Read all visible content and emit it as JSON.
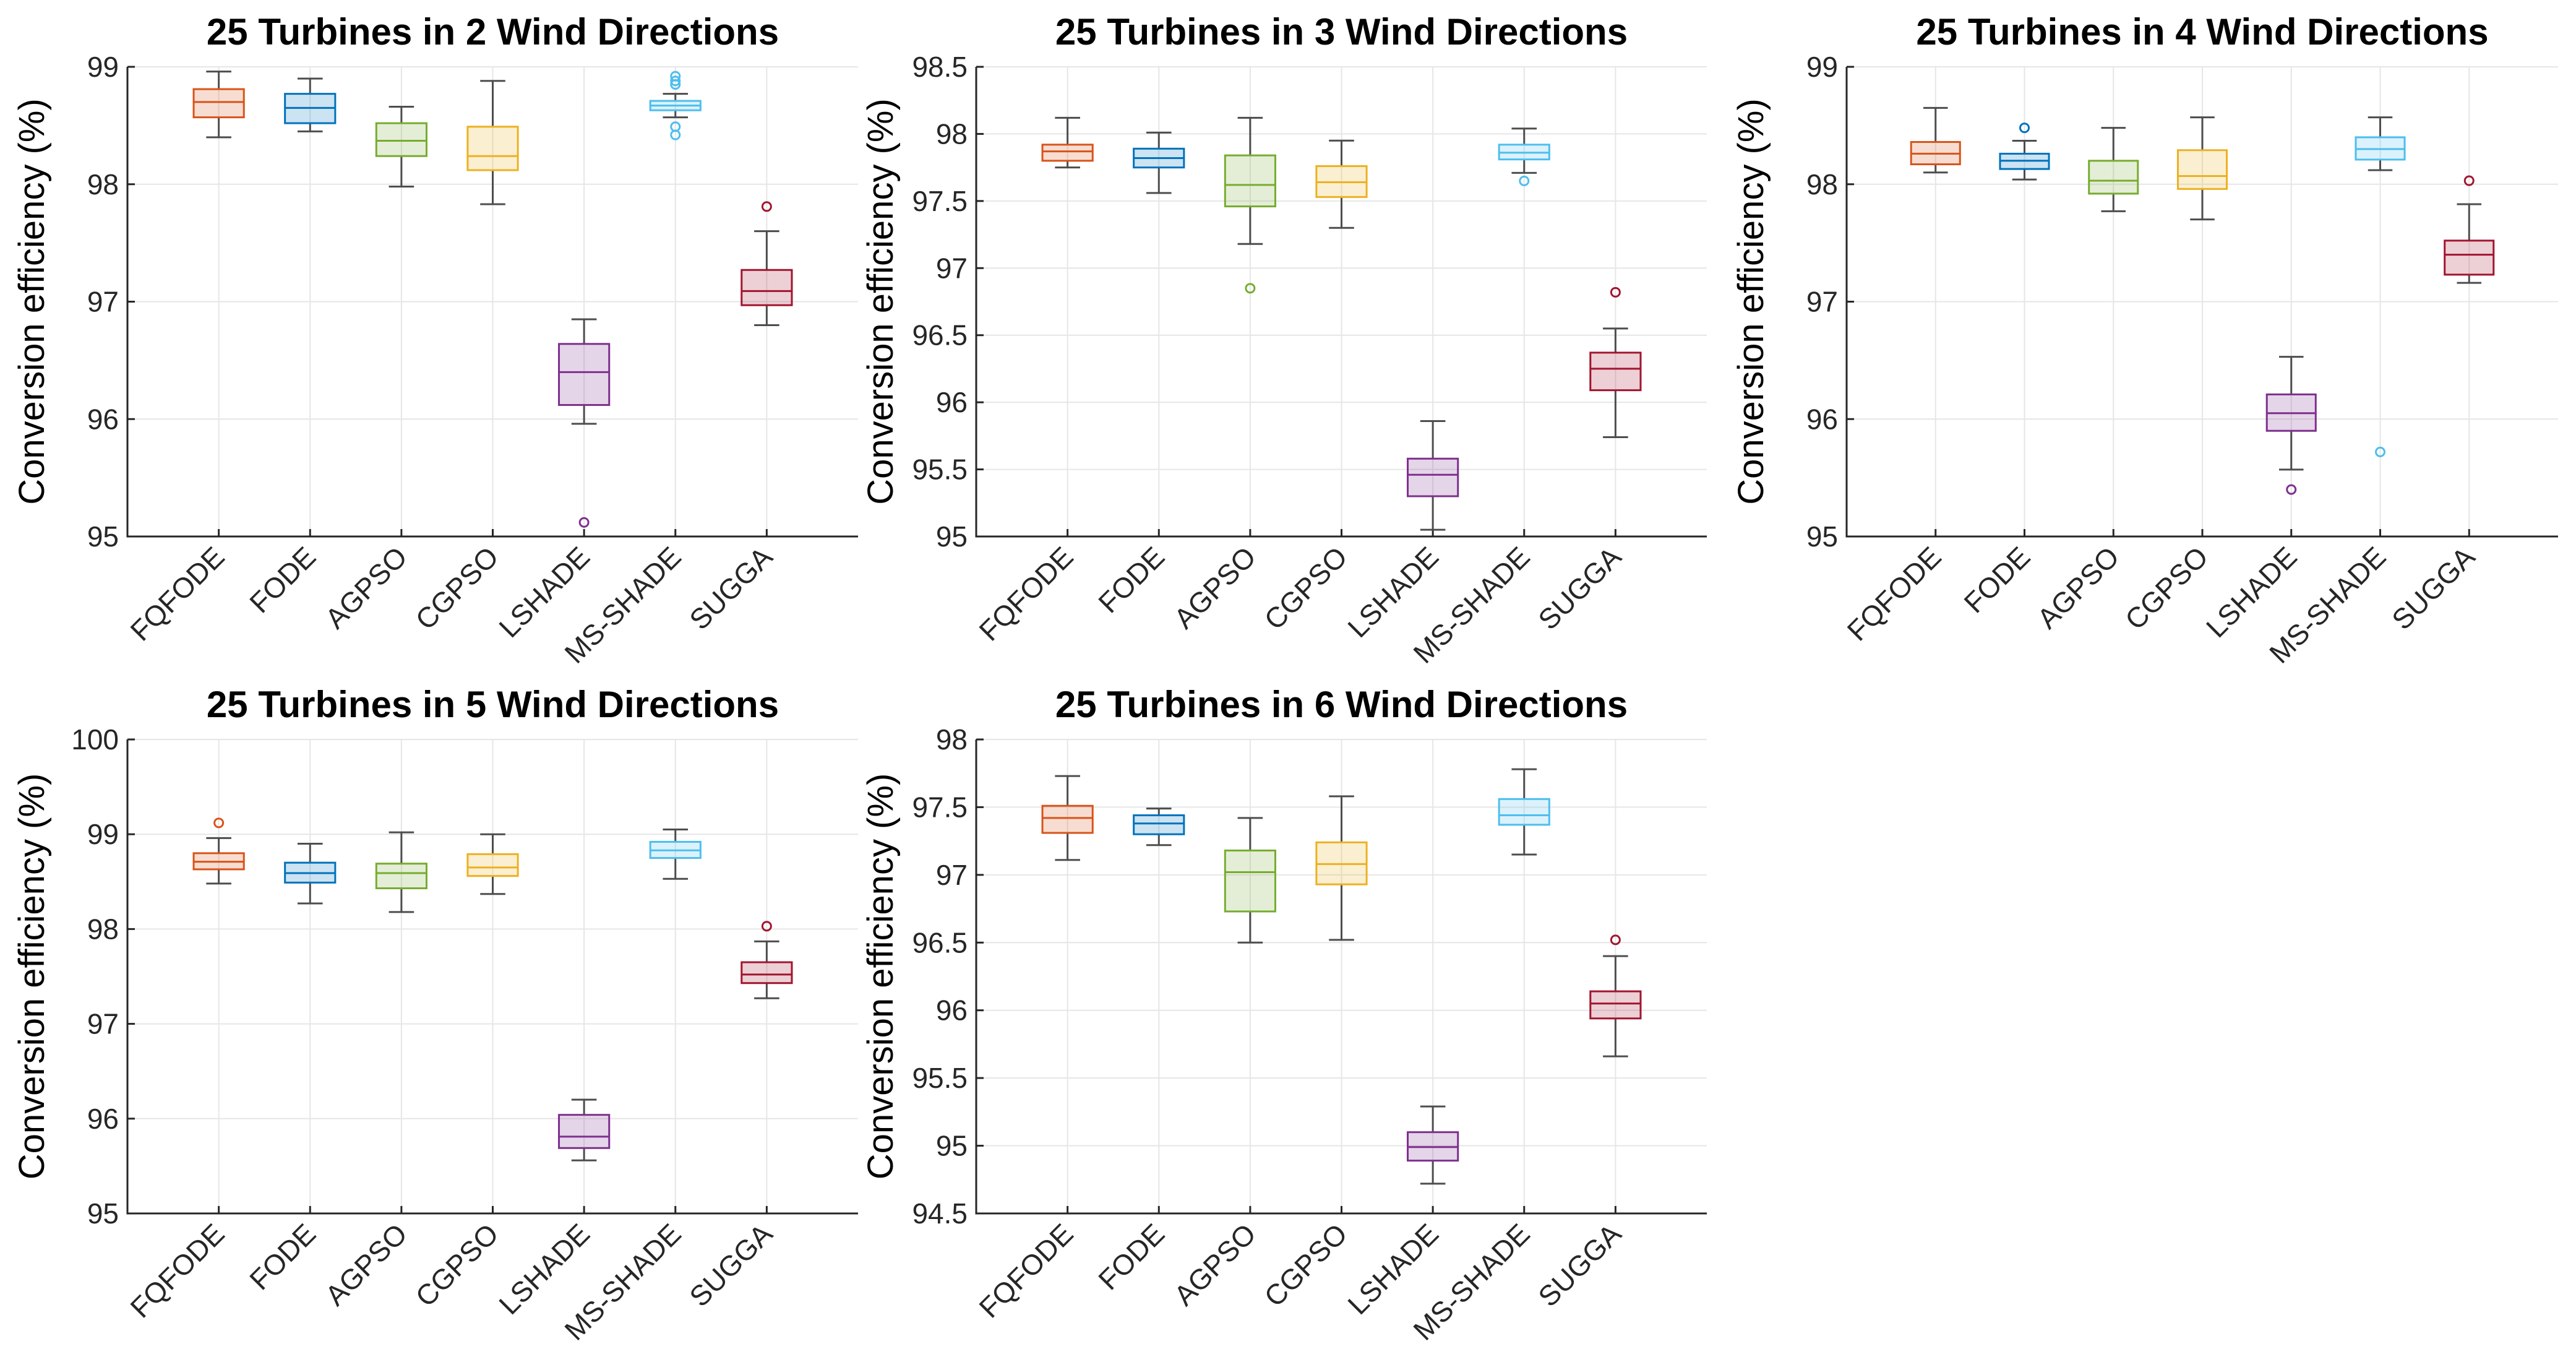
{
  "chart_data": [
    {
      "type": "box",
      "title": "25 Turbines in 2 Wind Directions",
      "ylabel": "Conversion efficiency (%)",
      "xlabel": "",
      "ylim": [
        95,
        99
      ],
      "yticks": [
        "95",
        "96",
        "97",
        "98",
        "99"
      ],
      "grid": true,
      "categories": [
        "FQFODE",
        "FODE",
        "AGPSO",
        "CGPSO",
        "LSHADE",
        "MS-SHADE",
        "SUGGA"
      ],
      "boxes": [
        {
          "min": 98.4,
          "q1": 98.57,
          "median": 98.7,
          "q3": 98.81,
          "max": 98.96,
          "outliers": []
        },
        {
          "min": 98.45,
          "q1": 98.52,
          "median": 98.65,
          "q3": 98.77,
          "max": 98.9,
          "outliers": []
        },
        {
          "min": 97.98,
          "q1": 98.24,
          "median": 98.37,
          "q3": 98.52,
          "max": 98.66,
          "outliers": []
        },
        {
          "min": 97.83,
          "q1": 98.12,
          "median": 98.24,
          "q3": 98.49,
          "max": 98.88,
          "outliers": []
        },
        {
          "min": 95.96,
          "q1": 96.12,
          "median": 96.4,
          "q3": 96.64,
          "max": 96.85,
          "outliers": [
            95.12
          ]
        },
        {
          "min": 98.57,
          "q1": 98.63,
          "median": 98.67,
          "q3": 98.71,
          "max": 98.77,
          "outliers": [
            98.42,
            98.49,
            98.85,
            98.88,
            98.92
          ]
        },
        {
          "min": 96.8,
          "q1": 96.97,
          "median": 97.09,
          "q3": 97.27,
          "max": 97.6,
          "outliers": [
            97.81
          ]
        }
      ]
    },
    {
      "type": "box",
      "title": "25 Turbines in 3 Wind Directions",
      "ylabel": "Conversion efficiency (%)",
      "xlabel": "",
      "ylim": [
        95,
        98.5
      ],
      "yticks": [
        "95",
        "95.5",
        "96",
        "96.5",
        "97",
        "97.5",
        "98",
        "98.5"
      ],
      "grid": true,
      "categories": [
        "FQFODE",
        "FODE",
        "AGPSO",
        "CGPSO",
        "LSHADE",
        "MS-SHADE",
        "SUGGA"
      ],
      "boxes": [
        {
          "min": 97.75,
          "q1": 97.8,
          "median": 97.87,
          "q3": 97.92,
          "max": 98.12,
          "outliers": []
        },
        {
          "min": 97.56,
          "q1": 97.75,
          "median": 97.82,
          "q3": 97.89,
          "max": 98.01,
          "outliers": []
        },
        {
          "min": 97.18,
          "q1": 97.46,
          "median": 97.62,
          "q3": 97.84,
          "max": 98.12,
          "outliers": [
            96.85
          ]
        },
        {
          "min": 97.3,
          "q1": 97.53,
          "median": 97.64,
          "q3": 97.76,
          "max": 97.95,
          "outliers": []
        },
        {
          "min": 95.05,
          "q1": 95.3,
          "median": 95.46,
          "q3": 95.58,
          "max": 95.86,
          "outliers": []
        },
        {
          "min": 97.71,
          "q1": 97.81,
          "median": 97.86,
          "q3": 97.92,
          "max": 98.04,
          "outliers": [
            97.65
          ]
        },
        {
          "min": 95.74,
          "q1": 96.09,
          "median": 96.25,
          "q3": 96.37,
          "max": 96.55,
          "outliers": [
            96.82
          ]
        }
      ]
    },
    {
      "type": "box",
      "title": "25 Turbines in 4 Wind Directions",
      "ylabel": "Conversion efficiency (%)",
      "xlabel": "",
      "ylim": [
        95,
        99
      ],
      "yticks": [
        "95",
        "96",
        "97",
        "98",
        "99"
      ],
      "grid": true,
      "categories": [
        "FQFODE",
        "FODE",
        "AGPSO",
        "CGPSO",
        "LSHADE",
        "MS-SHADE",
        "SUGGA"
      ],
      "boxes": [
        {
          "min": 98.1,
          "q1": 98.17,
          "median": 98.26,
          "q3": 98.36,
          "max": 98.65,
          "outliers": []
        },
        {
          "min": 98.04,
          "q1": 98.13,
          "median": 98.2,
          "q3": 98.26,
          "max": 98.37,
          "outliers": [
            98.48
          ]
        },
        {
          "min": 97.77,
          "q1": 97.92,
          "median": 98.03,
          "q3": 98.2,
          "max": 98.48,
          "outliers": []
        },
        {
          "min": 97.7,
          "q1": 97.96,
          "median": 98.07,
          "q3": 98.29,
          "max": 98.57,
          "outliers": []
        },
        {
          "min": 95.57,
          "q1": 95.9,
          "median": 96.05,
          "q3": 96.21,
          "max": 96.53,
          "outliers": [
            95.4
          ]
        },
        {
          "min": 98.12,
          "q1": 98.21,
          "median": 98.3,
          "q3": 98.4,
          "max": 98.57,
          "outliers": [
            95.72
          ]
        },
        {
          "min": 97.16,
          "q1": 97.23,
          "median": 97.4,
          "q3": 97.52,
          "max": 97.83,
          "outliers": [
            98.03
          ]
        }
      ]
    },
    {
      "type": "box",
      "title": "25 Turbines in 5 Wind Directions",
      "ylabel": "Conversion efficiency (%)",
      "xlabel": "",
      "ylim": [
        95,
        100
      ],
      "yticks": [
        "95",
        "96",
        "97",
        "98",
        "99",
        "100"
      ],
      "grid": true,
      "categories": [
        "FQFODE",
        "FODE",
        "AGPSO",
        "CGPSO",
        "LSHADE",
        "MS-SHADE",
        "SUGGA"
      ],
      "boxes": [
        {
          "min": 98.48,
          "q1": 98.63,
          "median": 98.71,
          "q3": 98.8,
          "max": 98.96,
          "outliers": [
            99.12
          ]
        },
        {
          "min": 98.27,
          "q1": 98.49,
          "median": 98.59,
          "q3": 98.7,
          "max": 98.9,
          "outliers": []
        },
        {
          "min": 98.18,
          "q1": 98.43,
          "median": 98.59,
          "q3": 98.69,
          "max": 99.02,
          "outliers": []
        },
        {
          "min": 98.37,
          "q1": 98.56,
          "median": 98.65,
          "q3": 98.79,
          "max": 99.0,
          "outliers": []
        },
        {
          "min": 95.56,
          "q1": 95.69,
          "median": 95.81,
          "q3": 96.04,
          "max": 96.2,
          "outliers": []
        },
        {
          "min": 98.53,
          "q1": 98.75,
          "median": 98.83,
          "q3": 98.92,
          "max": 99.05,
          "outliers": []
        },
        {
          "min": 97.27,
          "q1": 97.43,
          "median": 97.52,
          "q3": 97.65,
          "max": 97.87,
          "outliers": [
            98.03
          ]
        }
      ]
    },
    {
      "type": "box",
      "title": "25 Turbines in 6 Wind Directions",
      "ylabel": "Conversion efficiency (%)",
      "xlabel": "",
      "ylim": [
        94.5,
        98
      ],
      "yticks": [
        "94.5",
        "95",
        "95.5",
        "96",
        "96.5",
        "97",
        "97.5",
        "98"
      ],
      "grid": true,
      "categories": [
        "FQFODE",
        "FODE",
        "AGPSO",
        "CGPSO",
        "LSHADE",
        "MS-SHADE",
        "SUGGA"
      ],
      "boxes": [
        {
          "min": 97.11,
          "q1": 97.31,
          "median": 97.42,
          "q3": 97.51,
          "max": 97.73,
          "outliers": []
        },
        {
          "min": 97.22,
          "q1": 97.3,
          "median": 97.38,
          "q3": 97.44,
          "max": 97.49,
          "outliers": []
        },
        {
          "min": 96.5,
          "q1": 96.73,
          "median": 97.02,
          "q3": 97.18,
          "max": 97.42,
          "outliers": []
        },
        {
          "min": 96.52,
          "q1": 96.93,
          "median": 97.08,
          "q3": 97.24,
          "max": 97.58,
          "outliers": []
        },
        {
          "min": 94.72,
          "q1": 94.89,
          "median": 94.99,
          "q3": 95.1,
          "max": 95.29,
          "outliers": []
        },
        {
          "min": 97.15,
          "q1": 97.37,
          "median": 97.44,
          "q3": 97.56,
          "max": 97.78,
          "outliers": []
        },
        {
          "min": 95.66,
          "q1": 95.94,
          "median": 96.05,
          "q3": 96.14,
          "max": 96.4,
          "outliers": [
            96.52
          ]
        }
      ]
    }
  ],
  "series_colors": {
    "FQFODE": "#d95319",
    "FODE": "#0072bd",
    "AGPSO": "#77ac30",
    "CGPSO": "#edb120",
    "LSHADE": "#7e2f8e",
    "MS-SHADE": "#4dbeee",
    "SUGGA": "#a2142f"
  }
}
